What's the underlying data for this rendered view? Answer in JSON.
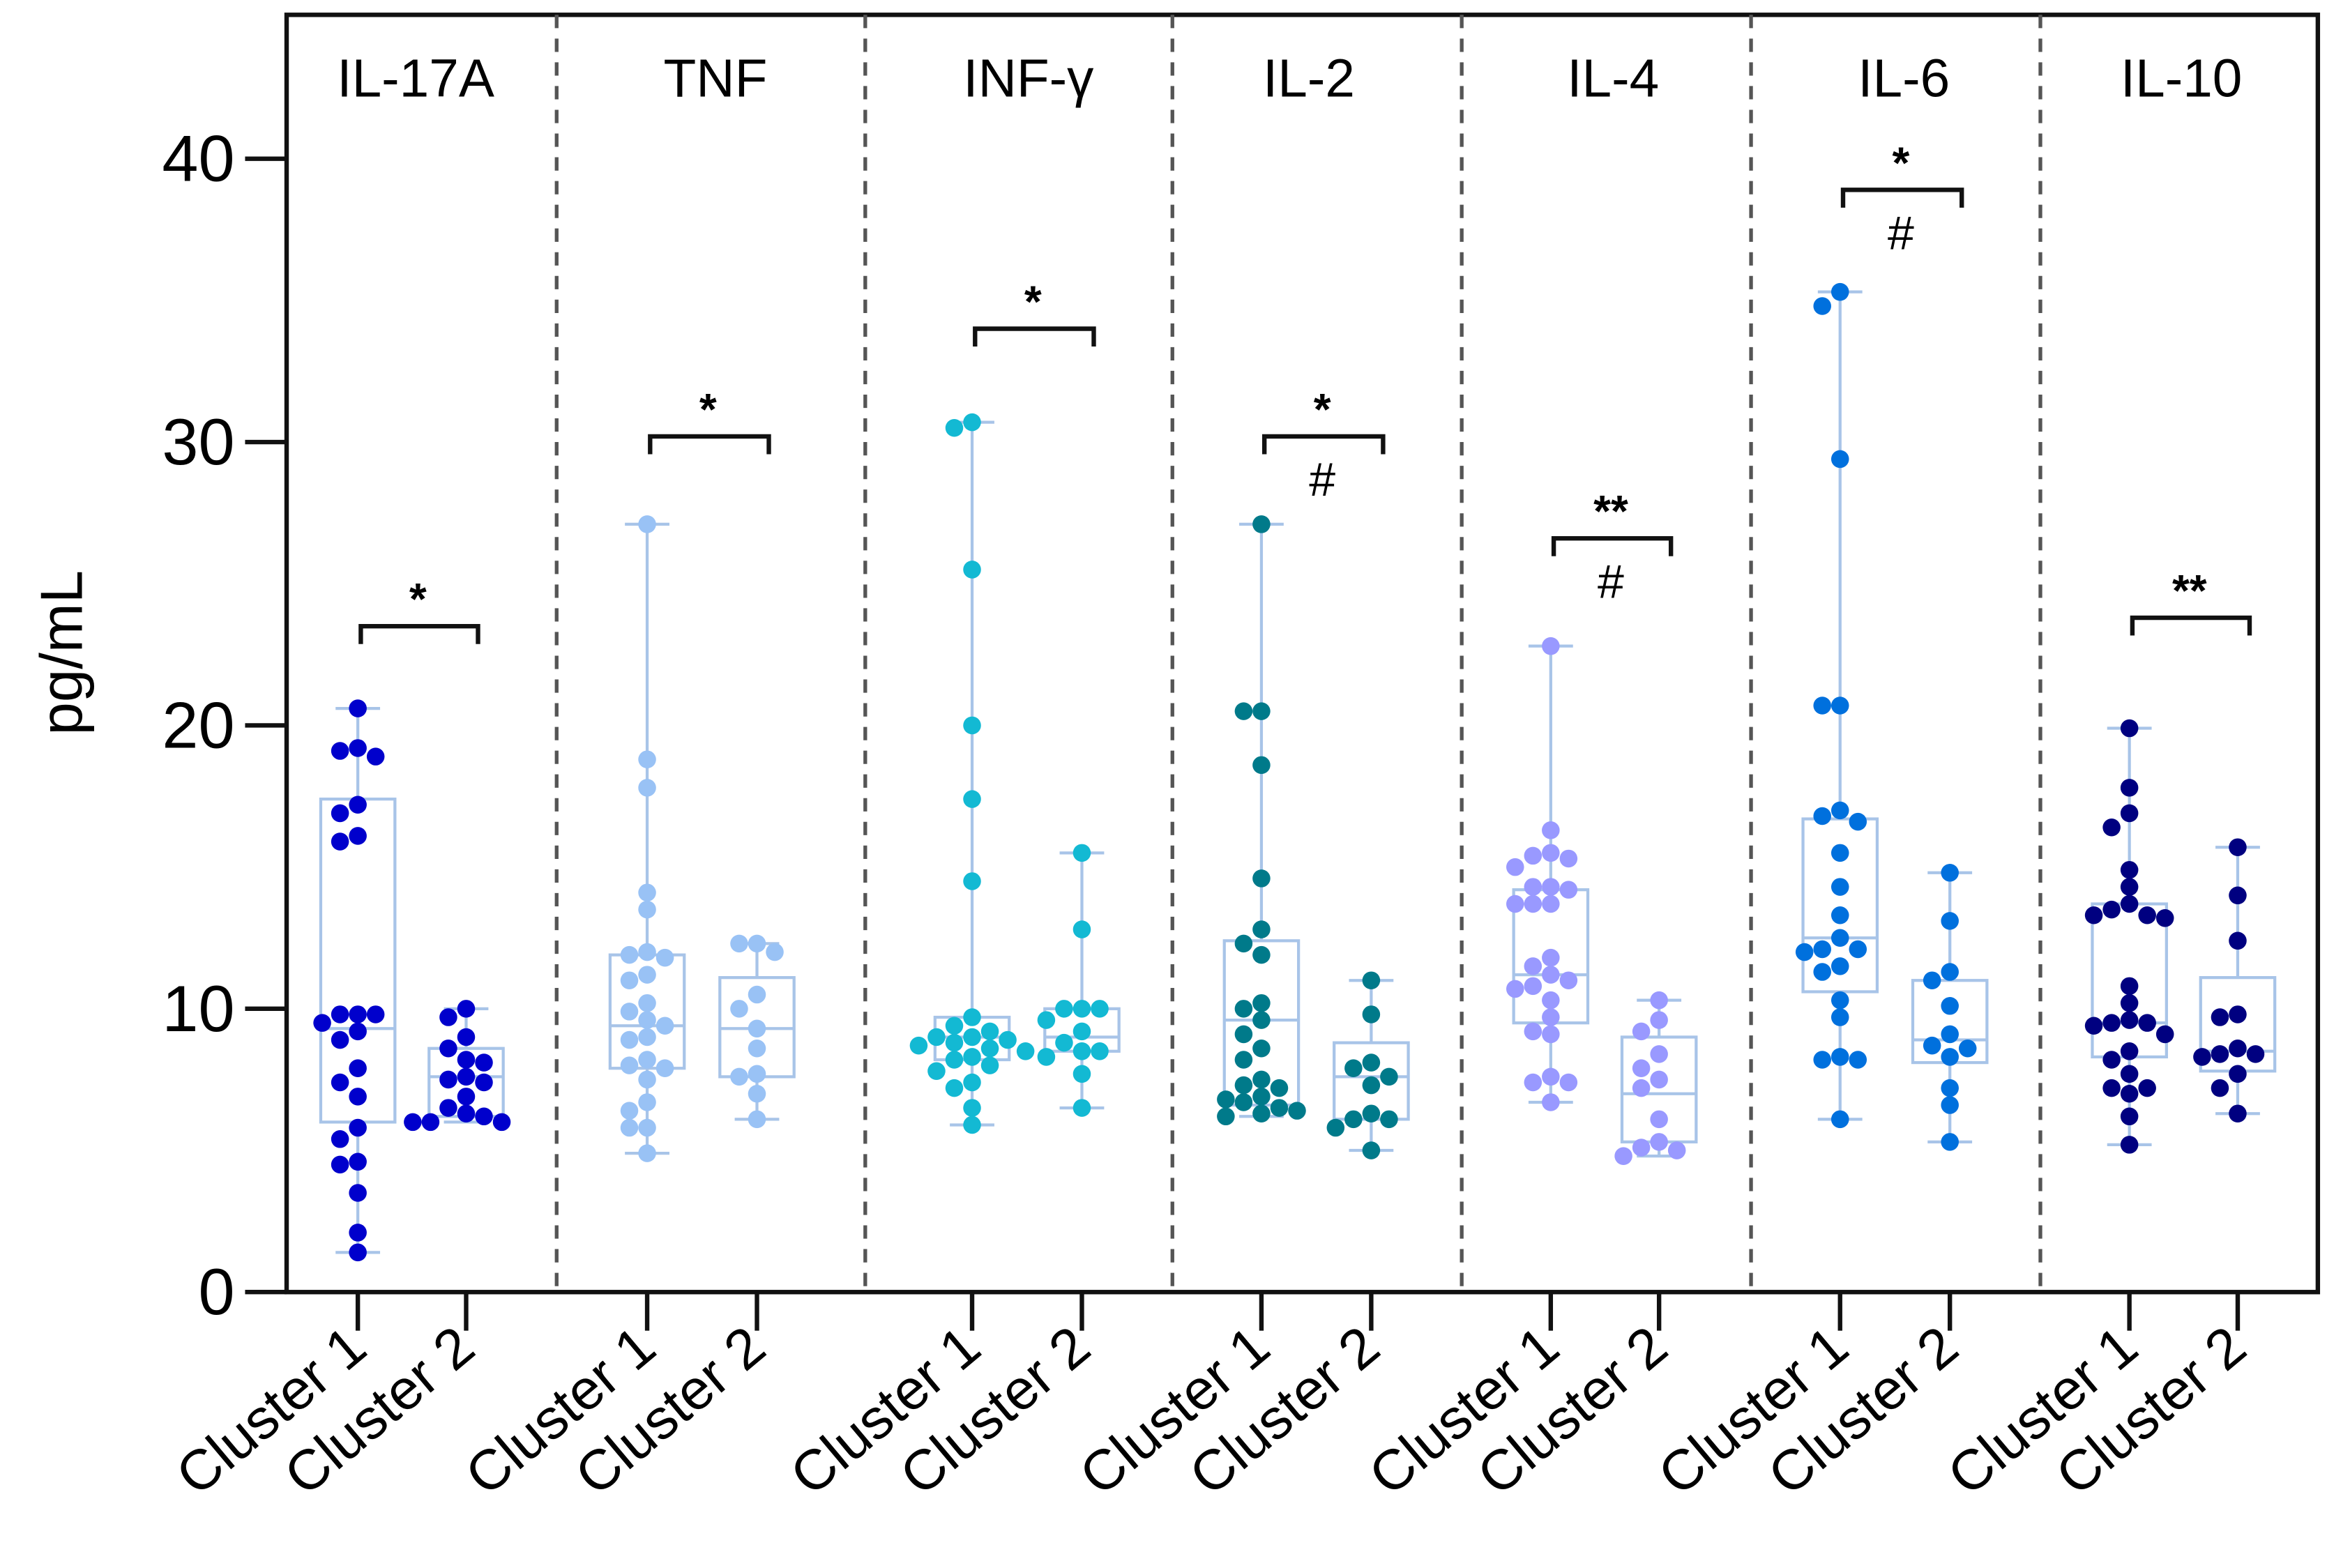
{
  "chart_data": {
    "type": "box-scatter",
    "ylabel": "pg/mL",
    "ylim": [
      0,
      45
    ],
    "yticks": [
      0,
      10,
      20,
      30,
      40
    ],
    "grid": false,
    "box_color": "#A8C4E8",
    "category_labels": [
      "Cluster 1",
      "Cluster 2"
    ],
    "panels": [
      {
        "title": "IL-17A",
        "color": "#0000CC",
        "sig_top": "*",
        "sig_bottom": "",
        "bracket_y": 23.5,
        "groups": [
          {
            "label": "Cluster 1",
            "box": {
              "min": 1.4,
              "q1": 6.0,
              "median": 9.3,
              "q3": 17.4,
              "max": 20.6
            },
            "values": [
              20.6,
              19.2,
              19.1,
              18.9,
              17.2,
              16.9,
              16.1,
              15.9,
              9.8,
              9.8,
              9.8,
              9.5,
              9.2,
              8.9,
              7.9,
              7.4,
              6.9,
              5.8,
              5.4,
              4.6,
              4.5,
              3.5,
              2.1,
              1.4
            ]
          },
          {
            "label": "Cluster 2",
            "box": {
              "min": 6.0,
              "q1": 6.2,
              "median": 7.6,
              "q3": 8.6,
              "max": 10.0
            },
            "values": [
              10.0,
              9.7,
              9.0,
              8.6,
              8.2,
              8.1,
              7.6,
              7.5,
              7.4,
              6.9,
              6.5,
              6.3,
              6.2,
              6.0,
              6.0,
              6.0
            ]
          }
        ]
      },
      {
        "title": "TNF",
        "color": "#99C2F5",
        "sig_top": "*",
        "sig_bottom": "",
        "bracket_y": 30.2,
        "groups": [
          {
            "label": "Cluster 1",
            "box": {
              "min": 4.9,
              "q1": 7.9,
              "median": 9.4,
              "q3": 11.9,
              "max": 27.1
            },
            "values": [
              27.1,
              18.8,
              17.8,
              14.1,
              13.5,
              12.0,
              11.9,
              11.8,
              11.2,
              11.0,
              10.2,
              9.9,
              9.6,
              9.4,
              9.0,
              8.9,
              8.2,
              8.0,
              7.9,
              7.5,
              6.7,
              6.4,
              5.8,
              5.8,
              4.9
            ]
          },
          {
            "label": "Cluster 2",
            "box": {
              "min": 6.1,
              "q1": 7.6,
              "median": 9.3,
              "q3": 11.1,
              "max": 12.3
            },
            "values": [
              12.3,
              12.3,
              12.0,
              10.5,
              10.0,
              9.3,
              8.6,
              7.7,
              7.6,
              7.0,
              6.1
            ]
          }
        ]
      },
      {
        "title": "INF-γ",
        "color": "#13B9D3",
        "sig_top": "*",
        "sig_bottom": "",
        "bracket_y": 34.0,
        "groups": [
          {
            "label": "Cluster 1",
            "box": {
              "min": 5.9,
              "q1": 8.2,
              "median": 9.0,
              "q3": 9.7,
              "max": 30.7
            },
            "values": [
              30.7,
              30.5,
              25.5,
              20.0,
              17.4,
              14.5,
              9.7,
              9.4,
              9.2,
              9.0,
              9.0,
              8.9,
              8.8,
              8.7,
              8.6,
              8.5,
              8.3,
              8.2,
              8.0,
              7.8,
              7.4,
              7.2,
              6.5,
              5.9
            ]
          },
          {
            "label": "Cluster 2",
            "box": {
              "min": 6.5,
              "q1": 8.5,
              "median": 9.0,
              "q3": 10.0,
              "max": 15.5
            },
            "values": [
              15.5,
              12.8,
              10.0,
              10.0,
              10.0,
              9.6,
              9.2,
              8.8,
              8.5,
              8.5,
              8.3,
              7.7,
              6.5
            ]
          }
        ]
      },
      {
        "title": "IL-2",
        "color": "#007A8A",
        "sig_top": "*",
        "sig_bottom": "#",
        "bracket_y": 30.2,
        "groups": [
          {
            "label": "Cluster 1",
            "box": {
              "min": 6.2,
              "q1": 6.6,
              "median": 9.6,
              "q3": 12.4,
              "max": 27.1
            },
            "values": [
              27.1,
              20.5,
              20.5,
              18.6,
              14.6,
              12.8,
              12.3,
              11.9,
              10.2,
              10.0,
              9.6,
              9.1,
              8.6,
              8.2,
              7.5,
              7.3,
              7.2,
              6.9,
              6.8,
              6.7,
              6.5,
              6.4,
              6.3,
              6.2
            ]
          },
          {
            "label": "Cluster 2",
            "box": {
              "min": 5.0,
              "q1": 6.1,
              "median": 7.6,
              "q3": 8.8,
              "max": 11.0
            },
            "values": [
              11.0,
              9.8,
              8.1,
              7.9,
              7.6,
              7.3,
              6.3,
              6.1,
              6.1,
              5.8,
              5.0
            ]
          }
        ]
      },
      {
        "title": "IL-4",
        "color": "#9999FF",
        "sig_top": "**",
        "sig_bottom": "#",
        "bracket_y": 26.6,
        "groups": [
          {
            "label": "Cluster 1",
            "box": {
              "min": 6.7,
              "q1": 9.5,
              "median": 11.2,
              "q3": 14.2,
              "max": 22.8
            },
            "values": [
              22.8,
              16.3,
              15.5,
              15.4,
              15.3,
              15.0,
              14.3,
              14.3,
              14.2,
              13.7,
              13.7,
              13.7,
              11.8,
              11.5,
              11.2,
              11.0,
              10.8,
              10.7,
              10.3,
              9.7,
              9.2,
              9.1,
              7.6,
              7.4,
              7.4,
              6.7
            ]
          },
          {
            "label": "Cluster 2",
            "box": {
              "min": 4.8,
              "q1": 5.3,
              "median": 7.0,
              "q3": 9.0,
              "max": 10.3
            },
            "values": [
              10.3,
              9.6,
              9.2,
              8.4,
              7.9,
              7.5,
              7.2,
              6.1,
              5.3,
              5.1,
              5.0,
              4.8
            ]
          }
        ]
      },
      {
        "title": "IL-6",
        "color": "#0070DD",
        "sig_top": "*",
        "sig_bottom": "#",
        "bracket_y": 38.9,
        "groups": [
          {
            "label": "Cluster 1",
            "box": {
              "min": 6.1,
              "q1": 10.6,
              "median": 12.5,
              "q3": 16.7,
              "max": 35.3
            },
            "values": [
              35.3,
              34.8,
              29.4,
              20.7,
              20.7,
              17.0,
              16.8,
              16.6,
              15.5,
              14.3,
              13.3,
              12.5,
              12.1,
              12.1,
              12.0,
              11.5,
              11.3,
              10.3,
              9.7,
              8.3,
              8.2,
              8.2,
              6.1
            ]
          },
          {
            "label": "Cluster 2",
            "box": {
              "min": 5.3,
              "q1": 8.1,
              "median": 8.9,
              "q3": 11.0,
              "max": 14.8
            },
            "values": [
              14.8,
              13.1,
              11.3,
              11.0,
              10.1,
              9.1,
              8.7,
              8.6,
              8.3,
              7.2,
              6.6,
              5.3
            ]
          }
        ]
      },
      {
        "title": "IL-10",
        "color": "#000080",
        "sig_top": "**",
        "sig_bottom": "",
        "bracket_y": 23.8,
        "groups": [
          {
            "label": "Cluster 1",
            "box": {
              "min": 5.2,
              "q1": 8.3,
              "median": 9.5,
              "q3": 13.7,
              "max": 19.9
            },
            "values": [
              19.9,
              17.8,
              16.9,
              16.4,
              14.9,
              14.3,
              13.7,
              13.5,
              13.3,
              13.3,
              13.2,
              10.8,
              10.2,
              9.6,
              9.5,
              9.5,
              9.4,
              9.1,
              8.5,
              8.2,
              7.7,
              7.2,
              7.2,
              7.0,
              6.2,
              5.2
            ]
          },
          {
            "label": "Cluster 2",
            "box": {
              "min": 6.3,
              "q1": 7.8,
              "median": 8.5,
              "q3": 11.1,
              "max": 15.7
            },
            "values": [
              15.7,
              14.0,
              12.4,
              9.8,
              9.7,
              8.6,
              8.4,
              8.4,
              8.3,
              7.7,
              7.2,
              6.3
            ]
          }
        ]
      }
    ]
  }
}
